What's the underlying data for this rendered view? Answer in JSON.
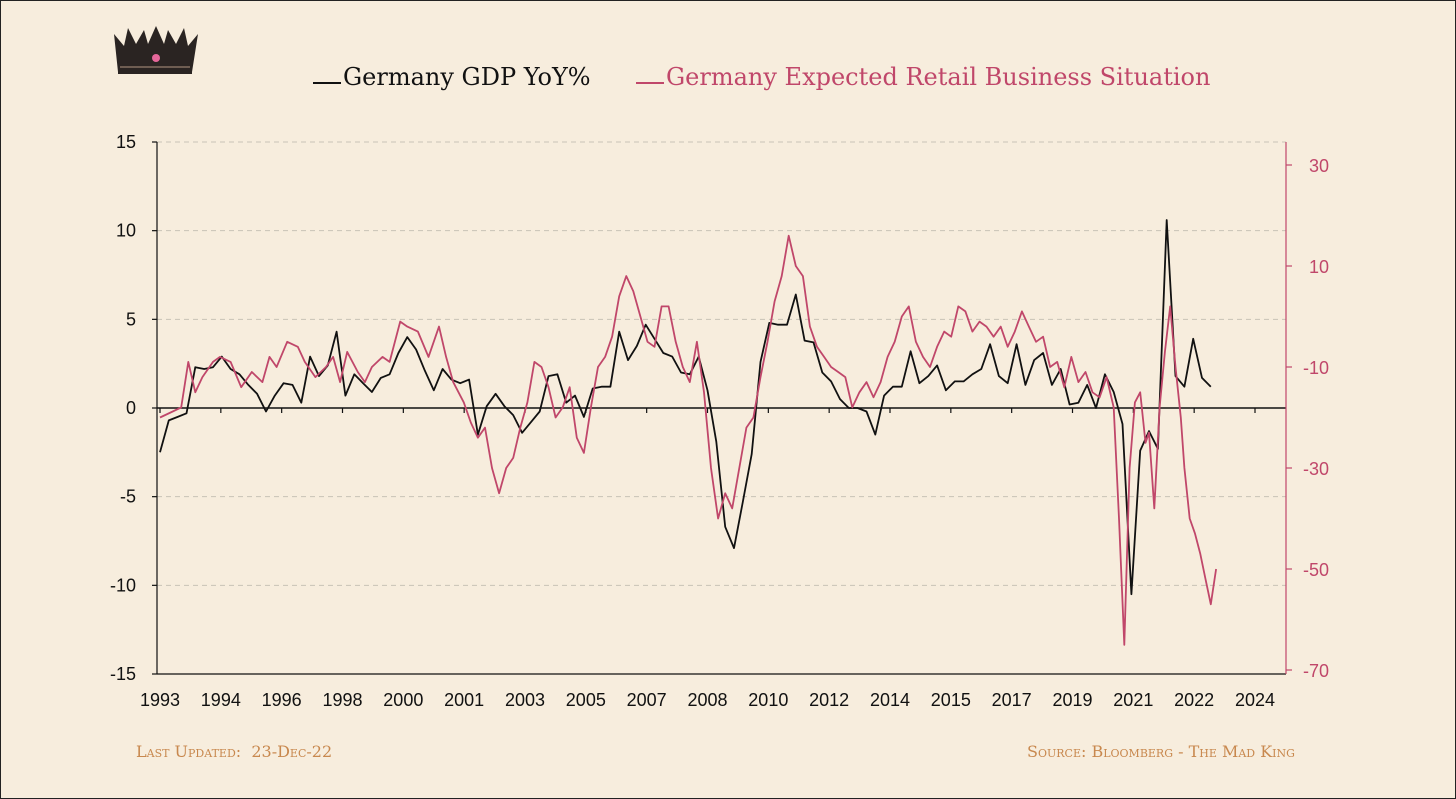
{
  "legend": {
    "gdp_label": "Germany GDP YoY%",
    "retail_label": "Germany Expected Retail Business Situation"
  },
  "footer": {
    "updated_label": "Last Updated:",
    "updated_value": "23-Dec-22",
    "source": "Source: Bloomberg - The Mad King"
  },
  "logo": {
    "icon": "crown-icon"
  },
  "colors": {
    "gdp": "#111111",
    "retail": "#c0476a",
    "background": "#f7eddd",
    "footer": "#c8884e",
    "grid": "#c8c2b6"
  },
  "chart_data": {
    "type": "line",
    "grid": true,
    "legend_position": "top-center",
    "x_tick_labels": [
      "1993",
      "1994",
      "1996",
      "1998",
      "2000",
      "2001",
      "2003",
      "2005",
      "2007",
      "2008",
      "2010",
      "2012",
      "2014",
      "2015",
      "2017",
      "2019",
      "2021",
      "2022",
      "2024"
    ],
    "xlim": [
      1993.0,
      2024.0
    ],
    "y_left": {
      "ylim": [
        -15,
        15
      ],
      "ticks": [
        15,
        10,
        5,
        0,
        -5,
        -10,
        -15
      ],
      "tick_labels": [
        "15",
        "10",
        "5",
        "0",
        "-5",
        "-10",
        "-15"
      ]
    },
    "y_right": {
      "ylim": [
        -70,
        35
      ],
      "ticks": [
        30,
        10,
        -10,
        -30,
        -50,
        -70
      ],
      "tick_labels": [
        "30",
        "10",
        "-10",
        "-30",
        "-50",
        "-70"
      ]
    },
    "series": [
      {
        "name": "Germany GDP YoY%",
        "axis": "left",
        "points": [
          [
            1993.0,
            -2.5
          ],
          [
            1993.25,
            -0.7
          ],
          [
            1993.5,
            -0.5
          ],
          [
            1993.75,
            -0.3
          ],
          [
            1994.0,
            2.3
          ],
          [
            1994.25,
            2.2
          ],
          [
            1994.5,
            2.3
          ],
          [
            1994.75,
            2.9
          ],
          [
            1995.0,
            2.2
          ],
          [
            1995.25,
            1.9
          ],
          [
            1995.5,
            1.3
          ],
          [
            1995.75,
            0.8
          ],
          [
            1996.0,
            -0.2
          ],
          [
            1996.25,
            0.7
          ],
          [
            1996.5,
            1.4
          ],
          [
            1996.75,
            1.3
          ],
          [
            1997.0,
            0.3
          ],
          [
            1997.25,
            2.9
          ],
          [
            1997.5,
            1.8
          ],
          [
            1997.75,
            2.4
          ],
          [
            1998.0,
            4.3
          ],
          [
            1998.25,
            0.7
          ],
          [
            1998.5,
            1.9
          ],
          [
            1998.75,
            1.4
          ],
          [
            1999.0,
            0.9
          ],
          [
            1999.25,
            1.7
          ],
          [
            1999.5,
            1.9
          ],
          [
            1999.75,
            3.1
          ],
          [
            2000.0,
            4.0
          ],
          [
            2000.25,
            3.3
          ],
          [
            2000.5,
            2.1
          ],
          [
            2000.75,
            1.0
          ],
          [
            2001.0,
            2.2
          ],
          [
            2001.25,
            1.6
          ],
          [
            2001.5,
            1.4
          ],
          [
            2001.75,
            1.6
          ],
          [
            2002.0,
            -1.5
          ],
          [
            2002.25,
            0.1
          ],
          [
            2002.5,
            0.8
          ],
          [
            2002.75,
            0.1
          ],
          [
            2003.0,
            -0.4
          ],
          [
            2003.25,
            -1.4
          ],
          [
            2003.5,
            -0.8
          ],
          [
            2003.75,
            -0.2
          ],
          [
            2004.0,
            1.8
          ],
          [
            2004.25,
            1.9
          ],
          [
            2004.5,
            0.3
          ],
          [
            2004.75,
            0.7
          ],
          [
            2005.0,
            -0.5
          ],
          [
            2005.25,
            1.1
          ],
          [
            2005.5,
            1.2
          ],
          [
            2005.75,
            1.2
          ],
          [
            2006.0,
            4.3
          ],
          [
            2006.25,
            2.7
          ],
          [
            2006.5,
            3.5
          ],
          [
            2006.75,
            4.7
          ],
          [
            2007.0,
            3.9
          ],
          [
            2007.25,
            3.1
          ],
          [
            2007.5,
            2.9
          ],
          [
            2007.75,
            2.0
          ],
          [
            2008.0,
            1.9
          ],
          [
            2008.25,
            2.9
          ],
          [
            2008.5,
            1.0
          ],
          [
            2008.75,
            -1.9
          ],
          [
            2009.0,
            -6.7
          ],
          [
            2009.25,
            -7.9
          ],
          [
            2009.5,
            -5.3
          ],
          [
            2009.75,
            -2.6
          ],
          [
            2010.0,
            2.6
          ],
          [
            2010.25,
            4.8
          ],
          [
            2010.5,
            4.7
          ],
          [
            2010.75,
            4.7
          ],
          [
            2011.0,
            6.4
          ],
          [
            2011.25,
            3.8
          ],
          [
            2011.5,
            3.7
          ],
          [
            2011.75,
            2.0
          ],
          [
            2012.0,
            1.5
          ],
          [
            2012.25,
            0.5
          ],
          [
            2012.5,
            0.0
          ],
          [
            2012.75,
            0.0
          ],
          [
            2013.0,
            -0.2
          ],
          [
            2013.25,
            -1.5
          ],
          [
            2013.5,
            0.7
          ],
          [
            2013.75,
            1.2
          ],
          [
            2014.0,
            1.2
          ],
          [
            2014.25,
            3.2
          ],
          [
            2014.5,
            1.4
          ],
          [
            2014.75,
            1.8
          ],
          [
            2015.0,
            2.4
          ],
          [
            2015.25,
            1.0
          ],
          [
            2015.5,
            1.5
          ],
          [
            2015.75,
            1.5
          ],
          [
            2016.0,
            1.9
          ],
          [
            2016.25,
            2.2
          ],
          [
            2016.5,
            3.6
          ],
          [
            2016.75,
            1.8
          ],
          [
            2017.0,
            1.4
          ],
          [
            2017.25,
            3.6
          ],
          [
            2017.5,
            1.3
          ],
          [
            2017.75,
            2.7
          ],
          [
            2018.0,
            3.1
          ],
          [
            2018.25,
            1.3
          ],
          [
            2018.5,
            2.2
          ],
          [
            2018.75,
            0.2
          ],
          [
            2019.0,
            0.3
          ],
          [
            2019.25,
            1.3
          ],
          [
            2019.5,
            0.0
          ],
          [
            2019.75,
            1.9
          ],
          [
            2020.0,
            0.9
          ],
          [
            2020.25,
            -0.9
          ],
          [
            2020.5,
            -10.5
          ],
          [
            2020.75,
            -2.4
          ],
          [
            2021.0,
            -1.3
          ],
          [
            2021.25,
            -2.3
          ],
          [
            2021.5,
            10.6
          ],
          [
            2021.75,
            1.8
          ],
          [
            2022.0,
            1.2
          ],
          [
            2022.25,
            3.9
          ],
          [
            2022.5,
            1.7
          ],
          [
            2022.75,
            1.2
          ]
        ]
      },
      {
        "name": "Germany Expected Retail Business Situation",
        "axis": "right",
        "points": [
          [
            1993.0,
            -20
          ],
          [
            1993.3,
            -19
          ],
          [
            1993.6,
            -18
          ],
          [
            1993.8,
            -9
          ],
          [
            1994.0,
            -15
          ],
          [
            1994.2,
            -12
          ],
          [
            1994.5,
            -9
          ],
          [
            1994.7,
            -8
          ],
          [
            1995.0,
            -9
          ],
          [
            1995.3,
            -14
          ],
          [
            1995.6,
            -11
          ],
          [
            1995.9,
            -13
          ],
          [
            1996.1,
            -8
          ],
          [
            1996.3,
            -10
          ],
          [
            1996.6,
            -5
          ],
          [
            1996.9,
            -6
          ],
          [
            1997.1,
            -9
          ],
          [
            1997.4,
            -12
          ],
          [
            1997.7,
            -10
          ],
          [
            1997.9,
            -8
          ],
          [
            1998.1,
            -13
          ],
          [
            1998.3,
            -7
          ],
          [
            1998.6,
            -11
          ],
          [
            1998.8,
            -13
          ],
          [
            1999.0,
            -10
          ],
          [
            1999.3,
            -8
          ],
          [
            1999.5,
            -9
          ],
          [
            1999.8,
            -1
          ],
          [
            2000.0,
            -2
          ],
          [
            2000.3,
            -3
          ],
          [
            2000.6,
            -8
          ],
          [
            2000.9,
            -2
          ],
          [
            2001.1,
            -8
          ],
          [
            2001.3,
            -13
          ],
          [
            2001.6,
            -17
          ],
          [
            2001.8,
            -21
          ],
          [
            2002.0,
            -24
          ],
          [
            2002.2,
            -22
          ],
          [
            2002.4,
            -30
          ],
          [
            2002.6,
            -35
          ],
          [
            2002.8,
            -30
          ],
          [
            2003.0,
            -28
          ],
          [
            2003.2,
            -22
          ],
          [
            2003.4,
            -17
          ],
          [
            2003.6,
            -9
          ],
          [
            2003.8,
            -10
          ],
          [
            2004.0,
            -14
          ],
          [
            2004.2,
            -20
          ],
          [
            2004.4,
            -18
          ],
          [
            2004.6,
            -14
          ],
          [
            2004.8,
            -24
          ],
          [
            2005.0,
            -27
          ],
          [
            2005.2,
            -18
          ],
          [
            2005.4,
            -10
          ],
          [
            2005.6,
            -8
          ],
          [
            2005.8,
            -4
          ],
          [
            2006.0,
            4
          ],
          [
            2006.2,
            8
          ],
          [
            2006.4,
            5
          ],
          [
            2006.6,
            0
          ],
          [
            2006.8,
            -5
          ],
          [
            2007.0,
            -6
          ],
          [
            2007.2,
            2
          ],
          [
            2007.4,
            2
          ],
          [
            2007.6,
            -5
          ],
          [
            2007.8,
            -10
          ],
          [
            2008.0,
            -13
          ],
          [
            2008.2,
            -5
          ],
          [
            2008.4,
            -15
          ],
          [
            2008.6,
            -30
          ],
          [
            2008.8,
            -40
          ],
          [
            2009.0,
            -35
          ],
          [
            2009.2,
            -38
          ],
          [
            2009.4,
            -30
          ],
          [
            2009.6,
            -22
          ],
          [
            2009.8,
            -20
          ],
          [
            2010.0,
            -12
          ],
          [
            2010.2,
            -5
          ],
          [
            2010.4,
            3
          ],
          [
            2010.6,
            8
          ],
          [
            2010.8,
            16
          ],
          [
            2011.0,
            10
          ],
          [
            2011.2,
            8
          ],
          [
            2011.4,
            -2
          ],
          [
            2011.6,
            -6
          ],
          [
            2011.8,
            -8
          ],
          [
            2012.0,
            -10
          ],
          [
            2012.2,
            -11
          ],
          [
            2012.4,
            -12
          ],
          [
            2012.6,
            -18
          ],
          [
            2012.8,
            -15
          ],
          [
            2013.0,
            -13
          ],
          [
            2013.2,
            -16
          ],
          [
            2013.4,
            -13
          ],
          [
            2013.6,
            -8
          ],
          [
            2013.8,
            -5
          ],
          [
            2014.0,
            0
          ],
          [
            2014.2,
            2
          ],
          [
            2014.4,
            -5
          ],
          [
            2014.6,
            -8
          ],
          [
            2014.8,
            -10
          ],
          [
            2015.0,
            -6
          ],
          [
            2015.2,
            -3
          ],
          [
            2015.4,
            -4
          ],
          [
            2015.6,
            2
          ],
          [
            2015.8,
            1
          ],
          [
            2016.0,
            -3
          ],
          [
            2016.2,
            -1
          ],
          [
            2016.4,
            -2
          ],
          [
            2016.6,
            -4
          ],
          [
            2016.8,
            -2
          ],
          [
            2017.0,
            -6
          ],
          [
            2017.2,
            -3
          ],
          [
            2017.4,
            1
          ],
          [
            2017.6,
            -2
          ],
          [
            2017.8,
            -5
          ],
          [
            2018.0,
            -4
          ],
          [
            2018.2,
            -10
          ],
          [
            2018.4,
            -9
          ],
          [
            2018.6,
            -14
          ],
          [
            2018.8,
            -8
          ],
          [
            2019.0,
            -13
          ],
          [
            2019.2,
            -11
          ],
          [
            2019.4,
            -15
          ],
          [
            2019.6,
            -16
          ],
          [
            2019.8,
            -12
          ],
          [
            2020.0,
            -18
          ],
          [
            2020.15,
            -40
          ],
          [
            2020.3,
            -65
          ],
          [
            2020.45,
            -30
          ],
          [
            2020.6,
            -17
          ],
          [
            2020.75,
            -15
          ],
          [
            2020.9,
            -25
          ],
          [
            2021.0,
            -23
          ],
          [
            2021.15,
            -38
          ],
          [
            2021.3,
            -18
          ],
          [
            2021.45,
            -7
          ],
          [
            2021.6,
            2
          ],
          [
            2021.75,
            -10
          ],
          [
            2021.9,
            -20
          ],
          [
            2022.0,
            -30
          ],
          [
            2022.15,
            -40
          ],
          [
            2022.3,
            -43
          ],
          [
            2022.45,
            -47
          ],
          [
            2022.6,
            -52
          ],
          [
            2022.75,
            -57
          ],
          [
            2022.9,
            -50
          ]
        ]
      }
    ]
  }
}
